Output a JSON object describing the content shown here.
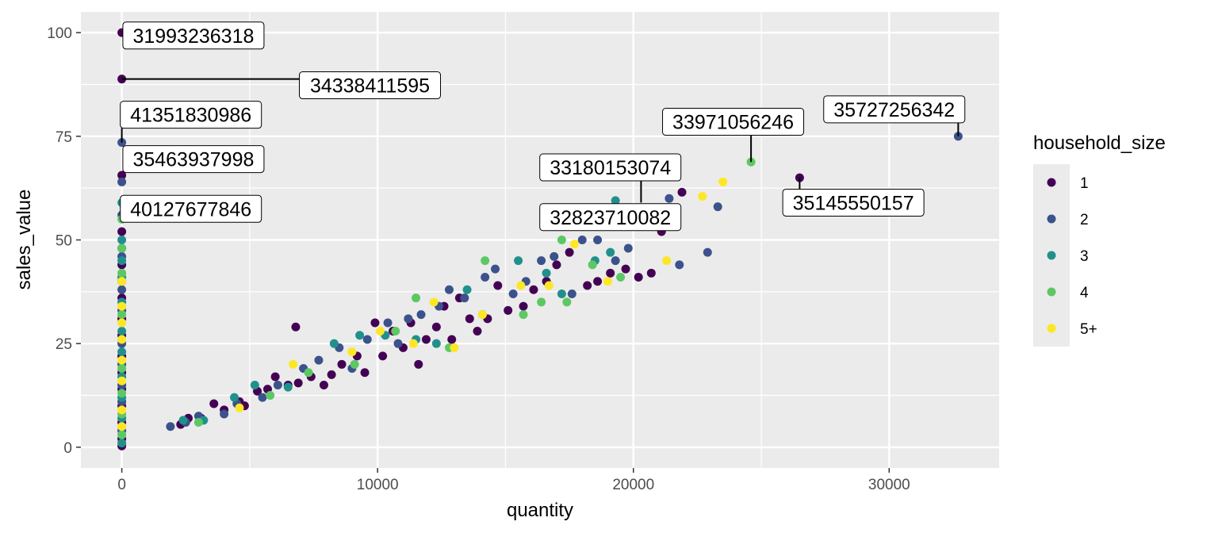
{
  "chart_data": {
    "type": "scatter",
    "title": "",
    "xlabel": "quantity",
    "ylabel": "sales_value",
    "xlim": [
      -1600,
      34300
    ],
    "ylim": [
      -5,
      105
    ],
    "x_ticks": [
      0,
      10000,
      20000,
      30000
    ],
    "x_tick_labels": [
      "0",
      "10000",
      "20000",
      "30000"
    ],
    "y_ticks": [
      0,
      25,
      50,
      75,
      100
    ],
    "y_tick_labels": [
      "0",
      "25",
      "50",
      "75",
      "100"
    ],
    "grid": true,
    "legend": {
      "title": "household_size",
      "placement": "right",
      "entries": [
        "1",
        "2",
        "3",
        "4",
        "5+"
      ],
      "colors": [
        "#440154",
        "#3b528b",
        "#21908c",
        "#5dc863",
        "#fde725"
      ]
    },
    "series": [
      {
        "name": "1",
        "color": "#440154",
        "points": [
          [
            0,
            100
          ],
          [
            0,
            88.8
          ],
          [
            0,
            65.6
          ],
          [
            0,
            52
          ],
          [
            0,
            48
          ],
          [
            0,
            44
          ],
          [
            0,
            40
          ],
          [
            0,
            36
          ],
          [
            0,
            31
          ],
          [
            0,
            27
          ],
          [
            0,
            22
          ],
          [
            0,
            18
          ],
          [
            0,
            14
          ],
          [
            0,
            10
          ],
          [
            0,
            6
          ],
          [
            0,
            2
          ],
          [
            0,
            0.3
          ],
          [
            2300,
            5.5
          ],
          [
            2600,
            7
          ],
          [
            3100,
            7
          ],
          [
            3600,
            10.5
          ],
          [
            4000,
            9
          ],
          [
            4600,
            11
          ],
          [
            4800,
            10
          ],
          [
            5300,
            13.5
          ],
          [
            5700,
            14
          ],
          [
            6000,
            17
          ],
          [
            6500,
            15
          ],
          [
            6800,
            29
          ],
          [
            6900,
            15.5
          ],
          [
            7400,
            17
          ],
          [
            7900,
            15
          ],
          [
            8200,
            17.5
          ],
          [
            8600,
            20
          ],
          [
            9200,
            22
          ],
          [
            9500,
            18
          ],
          [
            9900,
            30
          ],
          [
            10200,
            22
          ],
          [
            10600,
            28
          ],
          [
            11000,
            24
          ],
          [
            11300,
            30
          ],
          [
            11600,
            20
          ],
          [
            11900,
            26
          ],
          [
            12300,
            29
          ],
          [
            12600,
            34
          ],
          [
            12900,
            26
          ],
          [
            13200,
            36
          ],
          [
            13600,
            31
          ],
          [
            13900,
            28
          ],
          [
            14300,
            31
          ],
          [
            14700,
            39
          ],
          [
            15100,
            33
          ],
          [
            15700,
            34
          ],
          [
            16100,
            38
          ],
          [
            16600,
            40
          ],
          [
            17000,
            44
          ],
          [
            17500,
            47
          ],
          [
            18200,
            39
          ],
          [
            18600,
            40
          ],
          [
            19100,
            42
          ],
          [
            19700,
            43
          ],
          [
            20200,
            41
          ],
          [
            20700,
            42
          ],
          [
            21100,
            52
          ],
          [
            21900,
            61.5
          ],
          [
            26500,
            65
          ]
        ]
      },
      {
        "name": "2",
        "color": "#3b528b",
        "points": [
          [
            0,
            73.5
          ],
          [
            0,
            64
          ],
          [
            0,
            56
          ],
          [
            0,
            46
          ],
          [
            0,
            38
          ],
          [
            0,
            33
          ],
          [
            0,
            25
          ],
          [
            0,
            20
          ],
          [
            0,
            15
          ],
          [
            0,
            11
          ],
          [
            0,
            4
          ],
          [
            1900,
            5
          ],
          [
            2500,
            6
          ],
          [
            3000,
            7.5
          ],
          [
            4000,
            8
          ],
          [
            4500,
            10.5
          ],
          [
            5500,
            12
          ],
          [
            6100,
            15
          ],
          [
            7100,
            19
          ],
          [
            7700,
            21
          ],
          [
            8500,
            24
          ],
          [
            9000,
            19
          ],
          [
            9600,
            26
          ],
          [
            10400,
            30
          ],
          [
            10800,
            25
          ],
          [
            11200,
            31
          ],
          [
            11700,
            32
          ],
          [
            12400,
            34
          ],
          [
            12800,
            38
          ],
          [
            13400,
            36
          ],
          [
            14200,
            41
          ],
          [
            14600,
            43
          ],
          [
            15300,
            37
          ],
          [
            15800,
            40
          ],
          [
            16400,
            45
          ],
          [
            16900,
            46
          ],
          [
            17600,
            37
          ],
          [
            18000,
            50
          ],
          [
            18600,
            50
          ],
          [
            19300,
            45
          ],
          [
            19800,
            48
          ],
          [
            20700,
            57
          ],
          [
            21400,
            60
          ],
          [
            21800,
            44
          ],
          [
            22900,
            47
          ],
          [
            23300,
            58
          ],
          [
            32700,
            75
          ]
        ]
      },
      {
        "name": "3",
        "color": "#21908c",
        "points": [
          [
            0,
            59
          ],
          [
            0,
            50
          ],
          [
            0,
            45
          ],
          [
            0,
            41
          ],
          [
            0,
            35
          ],
          [
            0,
            28
          ],
          [
            0,
            23
          ],
          [
            0,
            17
          ],
          [
            0,
            12
          ],
          [
            0,
            7
          ],
          [
            0,
            1
          ],
          [
            2400,
            6.5
          ],
          [
            3200,
            6.5
          ],
          [
            4400,
            12
          ],
          [
            5200,
            15
          ],
          [
            6500,
            14.5
          ],
          [
            8300,
            25
          ],
          [
            9300,
            27
          ],
          [
            10300,
            27
          ],
          [
            11500,
            26
          ],
          [
            12300,
            25
          ],
          [
            13500,
            38
          ],
          [
            14100,
            32
          ],
          [
            15500,
            45
          ],
          [
            16600,
            42
          ],
          [
            17200,
            37
          ],
          [
            18500,
            45
          ],
          [
            19100,
            47
          ],
          [
            19300,
            59.5
          ]
        ]
      },
      {
        "name": "4",
        "color": "#5dc863",
        "points": [
          [
            0,
            55
          ],
          [
            0,
            48
          ],
          [
            0,
            42
          ],
          [
            0,
            32
          ],
          [
            0,
            19
          ],
          [
            0,
            13
          ],
          [
            0,
            8
          ],
          [
            0,
            3
          ],
          [
            3000,
            6
          ],
          [
            5800,
            12.5
          ],
          [
            7300,
            18
          ],
          [
            9100,
            20
          ],
          [
            10700,
            28
          ],
          [
            11500,
            36
          ],
          [
            12800,
            24
          ],
          [
            14200,
            45
          ],
          [
            15700,
            32
          ],
          [
            16400,
            35
          ],
          [
            17200,
            50
          ],
          [
            17400,
            35
          ],
          [
            18400,
            44
          ],
          [
            19500,
            41
          ],
          [
            24600,
            68.8
          ]
        ]
      },
      {
        "name": "5+",
        "color": "#fde725",
        "points": [
          [
            0,
            40
          ],
          [
            0,
            34
          ],
          [
            0,
            30
          ],
          [
            0,
            26
          ],
          [
            0,
            21
          ],
          [
            0,
            16
          ],
          [
            0,
            9
          ],
          [
            0,
            5
          ],
          [
            4600,
            9.5
          ],
          [
            6700,
            20
          ],
          [
            9000,
            23
          ],
          [
            10100,
            28
          ],
          [
            11400,
            25
          ],
          [
            12200,
            35
          ],
          [
            13000,
            24
          ],
          [
            14100,
            32
          ],
          [
            15600,
            39
          ],
          [
            16700,
            39
          ],
          [
            17700,
            49
          ],
          [
            19000,
            40
          ],
          [
            21300,
            45
          ],
          [
            22700,
            60.5
          ],
          [
            23500,
            64
          ]
        ]
      }
    ],
    "annotations": [
      {
        "label": "31993236318",
        "x": 0,
        "y": 100,
        "lx": 2800,
        "ly": 99.3
      },
      {
        "label": "34338411595",
        "x": 0,
        "y": 88.8,
        "lx": 9700,
        "ly": 87.3
      },
      {
        "label": "41351830986",
        "x": 0,
        "y": 73.5,
        "lx": 2700,
        "ly": 80.2
      },
      {
        "label": "35463937998",
        "x": 0,
        "y": 73.5,
        "lx": 2800,
        "ly": 69.5
      },
      {
        "label": "40127677846",
        "x": 0,
        "y": 53.5,
        "lx": 2700,
        "ly": 57.5
      },
      {
        "label": "33180153074",
        "x": 20300,
        "y": 59,
        "lx": 19100,
        "ly": 67.5
      },
      {
        "label": "32823710082",
        "x": 21100,
        "y": 52,
        "lx": 19100,
        "ly": 55.5
      },
      {
        "label": "33971056246",
        "x": 24600,
        "y": 68.8,
        "lx": 23900,
        "ly": 78.5
      },
      {
        "label": "35145550157",
        "x": 26500,
        "y": 65,
        "lx": 28600,
        "ly": 59
      },
      {
        "label": "35727256342",
        "x": 32700,
        "y": 75,
        "lx": 30200,
        "ly": 81.5
      }
    ]
  }
}
